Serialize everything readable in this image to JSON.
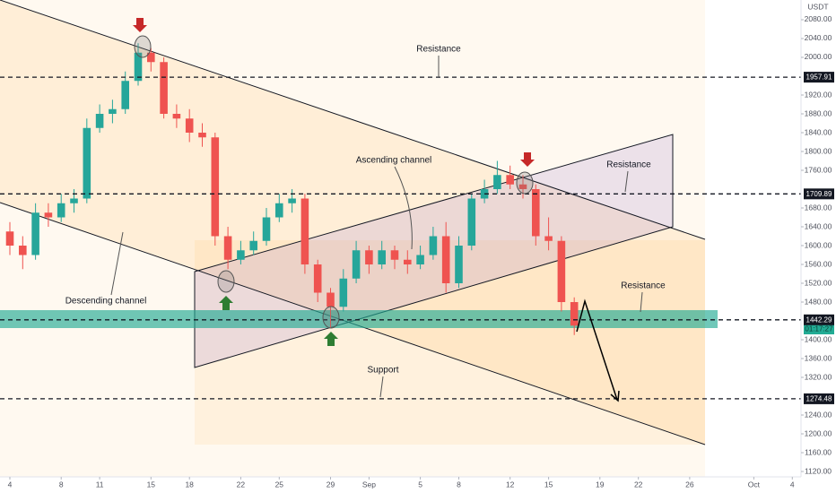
{
  "chart_data": {
    "type": "candlestick",
    "quote_currency": "USDT",
    "countdown": "01:17:27",
    "up_color": "#26a69a",
    "down_color": "#ef5350",
    "x": [
      4,
      5,
      6,
      7,
      8,
      9,
      10,
      11,
      12,
      13,
      14,
      15,
      16,
      17,
      18,
      19,
      20,
      21,
      22,
      23,
      24,
      25,
      26,
      27,
      28,
      29,
      30,
      31,
      32,
      33,
      34,
      35,
      36,
      37,
      38,
      39,
      40,
      41,
      42,
      43,
      44,
      45,
      46,
      47,
      48
    ],
    "open": [
      1630,
      1600,
      1580,
      1670,
      1660,
      1690,
      1700,
      1850,
      1880,
      1890,
      1950,
      2010,
      1990,
      1880,
      1870,
      1840,
      1830,
      1620,
      1570,
      1590,
      1610,
      1660,
      1690,
      1700,
      1560,
      1500,
      1470,
      1530,
      1590,
      1560,
      1590,
      1570,
      1560,
      1580,
      1620,
      1520,
      1600,
      1700,
      1720,
      1750,
      1730,
      1720,
      1620,
      1610,
      1480
    ],
    "high": [
      1650,
      1620,
      1690,
      1690,
      1710,
      1720,
      1870,
      1900,
      1910,
      1970,
      2030,
      2020,
      2000,
      1900,
      1890,
      1860,
      1840,
      1640,
      1610,
      1630,
      1680,
      1710,
      1720,
      1710,
      1570,
      1510,
      1550,
      1610,
      1600,
      1610,
      1600,
      1590,
      1600,
      1640,
      1650,
      1620,
      1710,
      1740,
      1780,
      1770,
      1750,
      1730,
      1660,
      1620,
      1490
    ],
    "low": [
      1580,
      1550,
      1570,
      1640,
      1650,
      1670,
      1690,
      1840,
      1860,
      1880,
      1940,
      1970,
      1870,
      1850,
      1820,
      1810,
      1600,
      1550,
      1560,
      1580,
      1600,
      1650,
      1670,
      1540,
      1480,
      1425,
      1460,
      1520,
      1540,
      1550,
      1550,
      1540,
      1550,
      1570,
      1500,
      1510,
      1590,
      1690,
      1710,
      1720,
      1700,
      1600,
      1590,
      1460,
      1410
    ],
    "close": [
      1600,
      1580,
      1670,
      1660,
      1690,
      1700,
      1850,
      1880,
      1890,
      1950,
      2010,
      1990,
      1880,
      1870,
      1840,
      1830,
      1620,
      1570,
      1590,
      1610,
      1660,
      1690,
      1700,
      1560,
      1500,
      1470,
      1530,
      1590,
      1560,
      1590,
      1570,
      1560,
      1580,
      1620,
      1520,
      1600,
      1700,
      1720,
      1750,
      1730,
      1720,
      1620,
      1610,
      1480,
      1430
    ],
    "xlim": [
      3.23,
      65.68
    ],
    "ylim": [
      1108.6,
      2121.9
    ],
    "xticks": [
      4,
      8,
      11,
      15,
      18,
      22,
      25,
      29,
      {
        "value": 32,
        "label": "Sep"
      },
      {
        "value": 36,
        "label": "5"
      },
      {
        "value": 39,
        "label": "8"
      },
      {
        "value": 43,
        "label": "12"
      },
      {
        "value": 46,
        "label": "15"
      },
      {
        "value": 50,
        "label": "19"
      },
      {
        "value": 53,
        "label": "22"
      },
      {
        "value": 57,
        "label": "26"
      },
      {
        "value": 62,
        "label": "Oct"
      },
      {
        "value": 65,
        "label": "4"
      }
    ],
    "yticks": [
      {
        "value": 2080,
        "label": "2080.00"
      },
      {
        "value": 2040,
        "label": "2040.00"
      },
      {
        "value": 2000,
        "label": "2000.00"
      },
      {
        "value": 1920,
        "label": "1920.00"
      },
      {
        "value": 1880,
        "label": "1880.00"
      },
      {
        "value": 1840,
        "label": "1840.00"
      },
      {
        "value": 1800,
        "label": "1800.00"
      },
      {
        "value": 1760,
        "label": "1760.00"
      },
      {
        "value": 1680,
        "label": "1680.00"
      },
      {
        "value": 1640,
        "label": "1640.00"
      },
      {
        "value": 1600,
        "label": "1600.00"
      },
      {
        "value": 1560,
        "label": "1560.00"
      },
      {
        "value": 1520,
        "label": "1520.00"
      },
      {
        "value": 1480,
        "label": "1480.00"
      },
      {
        "value": 1400,
        "label": "1400.00"
      },
      {
        "value": 1360,
        "label": "1360.00"
      },
      {
        "value": 1320,
        "label": "1320.00"
      },
      {
        "value": 1240,
        "label": "1240.00"
      },
      {
        "value": 1200,
        "label": "1200.00"
      },
      {
        "value": 1160,
        "label": "1160.00"
      },
      {
        "value": 1120,
        "label": "1120.00"
      }
    ],
    "levels": [
      1957.91,
      1709.89,
      1442.29,
      1274.48
    ],
    "annotations": [
      "Resistance",
      "Resistance",
      "Resistance",
      "Ascending channel",
      "Descending channel",
      "Support"
    ]
  }
}
